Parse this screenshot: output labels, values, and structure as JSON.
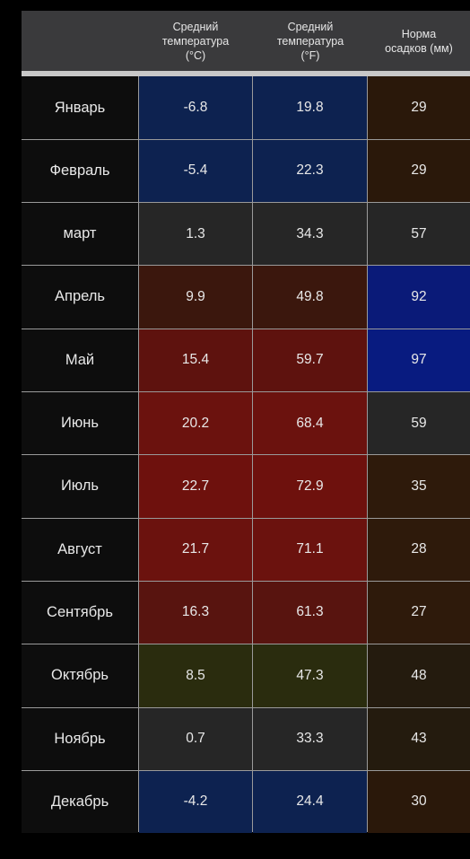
{
  "table": {
    "headers": [
      "",
      "Средний\nтемпература\n(°C)",
      "Средний\nтемпература\n(°F)",
      "Норма\nосадков (мм)"
    ],
    "rows": [
      {
        "month": "Январь",
        "c": "-6.8",
        "f": "19.8",
        "p": "29",
        "c_color": "#0d2250",
        "f_color": "#0d2250",
        "p_color": "#2a180a"
      },
      {
        "month": "Февраль",
        "c": "-5.4",
        "f": "22.3",
        "p": "29",
        "c_color": "#0d2250",
        "f_color": "#0d2250",
        "p_color": "#2a180a"
      },
      {
        "month": "март",
        "c": "1.3",
        "f": "34.3",
        "p": "57",
        "c_color": "#262626",
        "f_color": "#262626",
        "p_color": "#262626"
      },
      {
        "month": "Апрель",
        "c": "9.9",
        "f": "49.8",
        "p": "92",
        "c_color": "#3b170d",
        "f_color": "#3b170d",
        "p_color": "#0a1a78"
      },
      {
        "month": "Май",
        "c": "15.4",
        "f": "59.7",
        "p": "97",
        "c_color": "#5e120e",
        "f_color": "#5e120e",
        "p_color": "#081b80"
      },
      {
        "month": "Июнь",
        "c": "20.2",
        "f": "68.4",
        "p": "59",
        "c_color": "#6b120e",
        "f_color": "#6b120e",
        "p_color": "#262626"
      },
      {
        "month": "Июль",
        "c": "22.7",
        "f": "72.9",
        "p": "35",
        "c_color": "#6e110d",
        "f_color": "#6e110d",
        "p_color": "#2e1a0b"
      },
      {
        "month": "Август",
        "c": "21.7",
        "f": "71.1",
        "p": "28",
        "c_color": "#6b120e",
        "f_color": "#6b120e",
        "p_color": "#2e1a0b"
      },
      {
        "month": "Сентябрь",
        "c": "16.3",
        "f": "61.3",
        "p": "27",
        "c_color": "#58140f",
        "f_color": "#58140f",
        "p_color": "#2e1a0b"
      },
      {
        "month": "Октябрь",
        "c": "8.5",
        "f": "47.3",
        "p": "48",
        "c_color": "#2a2c0e",
        "f_color": "#2a2c0e",
        "p_color": "#241b0e"
      },
      {
        "month": "Ноябрь",
        "c": "0.7",
        "f": "33.3",
        "p": "43",
        "c_color": "#262626",
        "f_color": "#262626",
        "p_color": "#241b0e"
      },
      {
        "month": "Декабрь",
        "c": "-4.2",
        "f": "24.4",
        "p": "30",
        "c_color": "#0d2250",
        "f_color": "#0d2250",
        "p_color": "#2a180a"
      }
    ]
  }
}
